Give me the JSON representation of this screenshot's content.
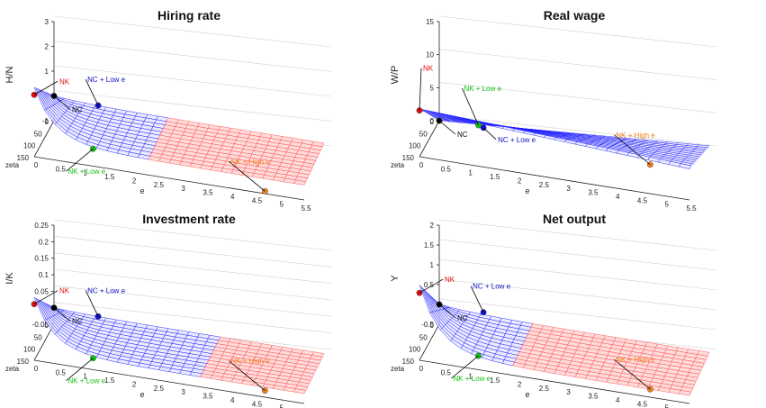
{
  "colors": {
    "surface_low_e": "#1a1aff",
    "surface_high_e": "#ff4a4a",
    "nk": "#e01010",
    "nc_low_e": "#1010c8",
    "nk_low_e": "#10c010",
    "nk_high_e": "#f08020",
    "nc": "#000000",
    "axis": "#222222",
    "grid": "#d0d0d0"
  },
  "chart_data": [
    {
      "type": "surface3d",
      "title": "Hiring rate",
      "zlabel": "H/N",
      "xlabel": "e",
      "ylabel": "zeta",
      "x_ticks": [
        "0",
        "0.5",
        "1",
        "1.5",
        "2",
        "2.5",
        "3",
        "3.5",
        "4",
        "4.5",
        "5",
        "5.5"
      ],
      "y_ticks": [
        "0",
        "50",
        "100",
        "150"
      ],
      "z_ticks": [
        "3",
        "2",
        "1",
        "0",
        "-1"
      ],
      "zlim": [
        -1,
        3
      ],
      "surface": {
        "low_e_peak": 1.8,
        "nc_value": 0,
        "trough": -0.4,
        "high_e_start": 2.2
      },
      "points": [
        {
          "label": "NK",
          "e": 0,
          "zeta": 150,
          "value": 1.5,
          "color": "#e01010"
        },
        {
          "label": "NC + Low e",
          "e": 0.9,
          "zeta": 0,
          "value": -0.1,
          "color": "#1010c8"
        },
        {
          "label": "NK + Low e",
          "e": 1.2,
          "zeta": 150,
          "value": -0.3,
          "color": "#10c010"
        },
        {
          "label": "NK + High e",
          "e": 4.7,
          "zeta": 150,
          "value": -0.9,
          "color": "#f08020"
        },
        {
          "label": "NC",
          "e": 0,
          "zeta": 0,
          "value": 0,
          "color": "#000000"
        }
      ]
    },
    {
      "type": "surface3d",
      "title": "Real wage",
      "zlabel": "W/P",
      "xlabel": "e",
      "ylabel": "zeta",
      "x_ticks": [
        "0",
        "0.5",
        "1",
        "1.5",
        "2",
        "2.5",
        "3",
        "3.5",
        "4",
        "4.5",
        "5",
        "5.5"
      ],
      "y_ticks": [
        "0",
        "50",
        "100",
        "150"
      ],
      "z_ticks": [
        "15",
        "10",
        "5",
        "0"
      ],
      "zlim": [
        0,
        15
      ],
      "surface": {
        "low_e_peak": 7,
        "nc_value": 0,
        "trough": 0,
        "high_e_start": 99
      },
      "points": [
        {
          "label": "NK",
          "e": 0,
          "zeta": 150,
          "value": 7,
          "color": "#e01010"
        },
        {
          "label": "NK + Low e",
          "e": 1.2,
          "zeta": 150,
          "value": 6.2,
          "color": "#10c010"
        },
        {
          "label": "NK + High e",
          "e": 4.7,
          "zeta": 150,
          "value": 4.4,
          "color": "#f08020"
        },
        {
          "label": "NC",
          "e": 0,
          "zeta": 0,
          "value": 0,
          "color": "#000000"
        },
        {
          "label": "NC + Low e",
          "e": 0.9,
          "zeta": 0,
          "value": 0,
          "color": "#1010c8"
        }
      ]
    },
    {
      "type": "surface3d",
      "title": "Investment rate",
      "zlabel": "I/K",
      "xlabel": "e",
      "ylabel": "zeta",
      "x_ticks": [
        "0",
        "0.5",
        "1",
        "1.5",
        "2",
        "2.5",
        "3",
        "3.5",
        "4",
        "4.5",
        "5",
        "5.5"
      ],
      "y_ticks": [
        "0",
        "50",
        "100",
        "150"
      ],
      "z_ticks": [
        "0.25",
        "0.2",
        "0.15",
        "0.1",
        "0.05",
        "0",
        "-0.05"
      ],
      "zlim": [
        -0.05,
        0.25
      ],
      "surface": {
        "low_e_peak": 0.14,
        "nc_value": 0,
        "trough": -0.02,
        "high_e_start": 3.2
      },
      "points": [
        {
          "label": "NK",
          "e": 0,
          "zeta": 150,
          "value": 0.12,
          "color": "#e01010"
        },
        {
          "label": "NC + Low e",
          "e": 0.9,
          "zeta": 0,
          "value": -0.005,
          "color": "#1010c8"
        },
        {
          "label": "NK + Low e",
          "e": 1.2,
          "zeta": 150,
          "value": -0.015,
          "color": "#10c010"
        },
        {
          "label": "NK + High e",
          "e": 4.7,
          "zeta": 150,
          "value": -0.03,
          "color": "#f08020"
        },
        {
          "label": "NC",
          "e": 0,
          "zeta": 0,
          "value": 0,
          "color": "#000000"
        }
      ]
    },
    {
      "type": "surface3d",
      "title": "Net output",
      "zlabel": "Y",
      "xlabel": "e",
      "ylabel": "zeta",
      "x_ticks": [
        "0",
        "0.5",
        "1",
        "1.5",
        "2",
        "2.5",
        "3",
        "3.5",
        "4",
        "4.5",
        "5",
        "5.5"
      ],
      "y_ticks": [
        "0",
        "50",
        "100",
        "150"
      ],
      "z_ticks": [
        "2",
        "1.5",
        "1",
        "0.5",
        "0",
        "-0.5"
      ],
      "zlim": [
        -0.5,
        2
      ],
      "surface": {
        "low_e_peak": 1.4,
        "nc_value": 0,
        "trough": -0.3,
        "high_e_start": 1.7
      },
      "points": [
        {
          "label": "NK",
          "e": 0,
          "zeta": 150,
          "value": 1.2,
          "color": "#e01010"
        },
        {
          "label": "NC + Low e",
          "e": 0.9,
          "zeta": 0,
          "value": -0.02,
          "color": "#1010c8"
        },
        {
          "label": "NK + Low e",
          "e": 1.2,
          "zeta": 150,
          "value": -0.15,
          "color": "#10c010"
        },
        {
          "label": "NK + High e",
          "e": 4.7,
          "zeta": 150,
          "value": -0.3,
          "color": "#f08020"
        },
        {
          "label": "NC",
          "e": 0,
          "zeta": 0,
          "value": 0,
          "color": "#000000"
        }
      ]
    }
  ]
}
